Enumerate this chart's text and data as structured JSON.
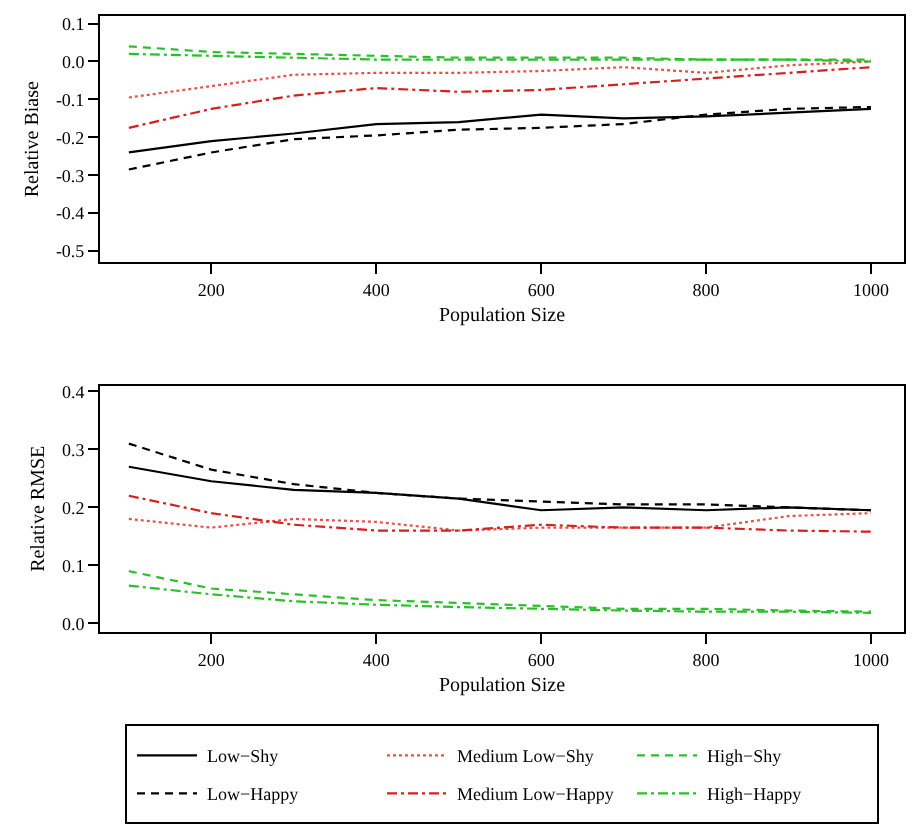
{
  "chart_data": [
    {
      "type": "line",
      "xlabel": "Population Size",
      "ylabel": "Relative Biase",
      "x": [
        100,
        200,
        300,
        400,
        500,
        600,
        700,
        800,
        900,
        1000
      ],
      "xlim": [
        65,
        1040
      ],
      "xticks": [
        200,
        400,
        600,
        800,
        1000
      ],
      "ylim": [
        -0.53,
        0.12
      ],
      "yticks": [
        -0.5,
        -0.4,
        -0.3,
        -0.2,
        -0.1,
        {
          "value": 0,
          "label": "0.0"
        },
        0.1
      ],
      "grid": false,
      "legend": "bottom",
      "series": [
        {
          "name": "Low−Shy",
          "color": "#000000",
          "line_style": "solid",
          "values": [
            -0.24,
            -0.21,
            -0.19,
            -0.165,
            -0.16,
            -0.14,
            -0.15,
            -0.145,
            -0.135,
            -0.125
          ]
        },
        {
          "name": "Low−Happy",
          "color": "#000000",
          "line_style": "dashed",
          "values": [
            -0.285,
            -0.24,
            -0.205,
            -0.195,
            -0.18,
            -0.175,
            -0.165,
            -0.14,
            -0.125,
            -0.12
          ]
        },
        {
          "name": "Medium Low−Shy",
          "color": "#e8504a",
          "line_style": "dotted",
          "values": [
            -0.095,
            -0.065,
            -0.035,
            -0.03,
            -0.03,
            -0.025,
            -0.015,
            -0.03,
            -0.01,
            0.0
          ]
        },
        {
          "name": "Medium Low−Happy",
          "color": "#d42020",
          "line_style": "dashdot",
          "values": [
            -0.175,
            -0.125,
            -0.09,
            -0.07,
            -0.08,
            -0.075,
            -0.06,
            -0.045,
            -0.03,
            -0.015
          ]
        },
        {
          "name": "High−Shy",
          "color": "#2cbf2c",
          "line_style": "dashed",
          "values": [
            0.04,
            0.025,
            0.02,
            0.015,
            0.01,
            0.01,
            0.01,
            0.005,
            0.005,
            0.005
          ]
        },
        {
          "name": "High−Happy",
          "color": "#2cbf2c",
          "line_style": "dashdot",
          "values": [
            0.02,
            0.015,
            0.01,
            0.005,
            0.005,
            0.005,
            0.005,
            0.005,
            0.005,
            0.0
          ]
        }
      ]
    },
    {
      "type": "line",
      "xlabel": "Population Size",
      "ylabel": "Relative RMSE",
      "x": [
        100,
        200,
        300,
        400,
        500,
        600,
        700,
        800,
        900,
        1000
      ],
      "xlim": [
        65,
        1040
      ],
      "xticks": [
        200,
        400,
        600,
        800,
        1000
      ],
      "ylim": [
        -0.015,
        0.41
      ],
      "yticks": [
        {
          "value": 0,
          "label": "0.0"
        },
        0.1,
        0.2,
        0.3,
        0.4
      ],
      "grid": false,
      "series": [
        {
          "color": "#000000",
          "line_style": "solid",
          "values": [
            0.27,
            0.245,
            0.23,
            0.225,
            0.215,
            0.195,
            0.2,
            0.195,
            0.2,
            0.195
          ]
        },
        {
          "color": "#000000",
          "line_style": "dashed",
          "values": [
            0.31,
            0.265,
            0.24,
            0.225,
            0.215,
            0.21,
            0.205,
            0.205,
            0.2,
            0.195
          ]
        },
        {
          "color": "#e8504a",
          "line_style": "dotted",
          "values": [
            0.18,
            0.165,
            0.18,
            0.175,
            0.16,
            0.165,
            0.165,
            0.165,
            0.185,
            0.19
          ]
        },
        {
          "color": "#d42020",
          "line_style": "dashdot",
          "values": [
            0.22,
            0.19,
            0.17,
            0.16,
            0.16,
            0.17,
            0.165,
            0.165,
            0.16,
            0.158
          ]
        },
        {
          "color": "#2cbf2c",
          "line_style": "dashed",
          "values": [
            0.09,
            0.06,
            0.05,
            0.04,
            0.035,
            0.03,
            0.025,
            0.025,
            0.022,
            0.02
          ]
        },
        {
          "color": "#2cbf2c",
          "line_style": "dashdot",
          "values": [
            0.065,
            0.05,
            0.038,
            0.032,
            0.028,
            0.025,
            0.022,
            0.02,
            0.02,
            0.018
          ]
        }
      ]
    }
  ]
}
